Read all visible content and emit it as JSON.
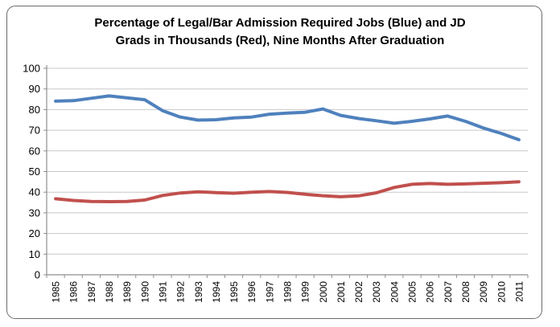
{
  "title": {
    "lines": [
      "Percentage of Legal/Bar Admission Required Jobs (Blue) and JD",
      "Grads in Thousands (Red), Nine Months After Graduation"
    ]
  },
  "chart_data": {
    "type": "line",
    "title": "Percentage of Legal/Bar Admission Required Jobs (Blue) and JD Grads in Thousands (Red), Nine Months After Graduation",
    "categories": [
      "1985",
      "1986",
      "1987",
      "1988",
      "1989",
      "1990",
      "1991",
      "1992",
      "1993",
      "1994",
      "1995",
      "1996",
      "1997",
      "1998",
      "1999",
      "2000",
      "2001",
      "2002",
      "2003",
      "2004",
      "2005",
      "2006",
      "2007",
      "2008",
      "2009",
      "2010",
      "2011"
    ],
    "series": [
      {
        "name": "Percentage of Legal/Bar Admission Required Jobs (Blue)",
        "color": "#4F81BD",
        "values": [
          84.1,
          84.3,
          85.5,
          86.6,
          85.7,
          84.8,
          79.5,
          76.4,
          74.9,
          75.1,
          76.0,
          76.4,
          77.8,
          78.3,
          78.7,
          80.3,
          77.2,
          75.7,
          74.6,
          73.4,
          74.3,
          75.5,
          76.9,
          74.3,
          71.1,
          68.5,
          65.4
        ]
      },
      {
        "name": "JD Grads in Thousands (Red)",
        "color": "#C0504D",
        "values": [
          36.8,
          36.0,
          35.5,
          35.4,
          35.5,
          36.2,
          38.4,
          39.6,
          40.2,
          39.8,
          39.5,
          40.0,
          40.3,
          39.9,
          39.0,
          38.3,
          37.8,
          38.2,
          39.7,
          42.3,
          43.8,
          44.2,
          43.8,
          44.0,
          44.3,
          44.6,
          45.0
        ]
      }
    ],
    "xlabel": "",
    "ylabel": "",
    "ylim": [
      0,
      100
    ],
    "ytick_step": 10,
    "y_tick_labels": [
      "0",
      "10",
      "20",
      "30",
      "40",
      "50",
      "60",
      "70",
      "80",
      "90",
      "100"
    ],
    "grid": true,
    "legend": "none",
    "x_tick_label_rotation": -90,
    "colors": {
      "series_blue": "#4F81BD",
      "series_red": "#C0504D",
      "gridline": "#C8C8C8",
      "axis": "#8E8E8E",
      "tick_label": "#000000",
      "background": "#FFFFFF"
    }
  }
}
